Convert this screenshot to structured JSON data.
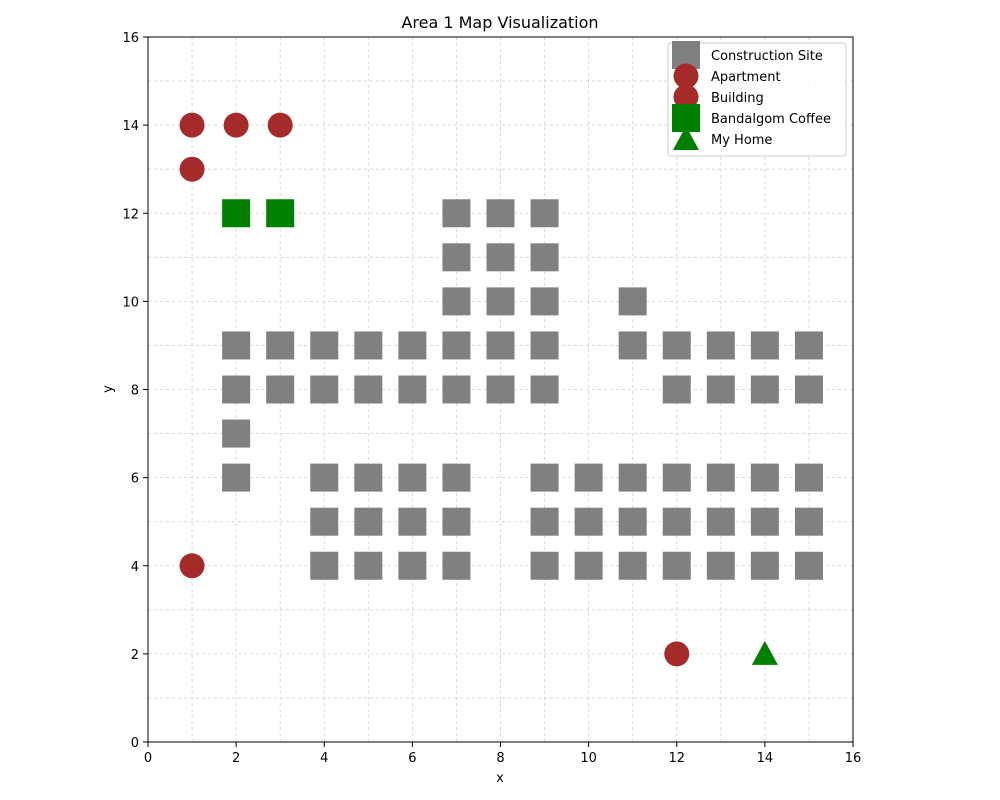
{
  "chart_data": {
    "type": "scatter",
    "title": "Area 1 Map Visualization",
    "xlabel": "x",
    "ylabel": "y",
    "xlim": [
      0,
      16
    ],
    "ylim": [
      0,
      16
    ],
    "xticks": [
      0,
      2,
      4,
      6,
      8,
      10,
      12,
      14,
      16
    ],
    "yticks": [
      0,
      2,
      4,
      6,
      8,
      10,
      12,
      14,
      16
    ],
    "grid": true,
    "legend_position": "top-right",
    "series": [
      {
        "name": "Construction Site",
        "marker": "square",
        "color": "#808080",
        "points": [
          [
            7,
            12
          ],
          [
            8,
            12
          ],
          [
            9,
            12
          ],
          [
            7,
            11
          ],
          [
            8,
            11
          ],
          [
            9,
            11
          ],
          [
            7,
            10
          ],
          [
            8,
            10
          ],
          [
            9,
            10
          ],
          [
            11,
            10
          ],
          [
            2,
            9
          ],
          [
            3,
            9
          ],
          [
            4,
            9
          ],
          [
            5,
            9
          ],
          [
            6,
            9
          ],
          [
            7,
            9
          ],
          [
            8,
            9
          ],
          [
            9,
            9
          ],
          [
            11,
            9
          ],
          [
            12,
            9
          ],
          [
            13,
            9
          ],
          [
            14,
            9
          ],
          [
            15,
            9
          ],
          [
            2,
            8
          ],
          [
            3,
            8
          ],
          [
            4,
            8
          ],
          [
            5,
            8
          ],
          [
            6,
            8
          ],
          [
            7,
            8
          ],
          [
            8,
            8
          ],
          [
            9,
            8
          ],
          [
            12,
            8
          ],
          [
            13,
            8
          ],
          [
            14,
            8
          ],
          [
            15,
            8
          ],
          [
            2,
            7
          ],
          [
            2,
            6
          ],
          [
            4,
            6
          ],
          [
            5,
            6
          ],
          [
            6,
            6
          ],
          [
            7,
            6
          ],
          [
            9,
            6
          ],
          [
            10,
            6
          ],
          [
            11,
            6
          ],
          [
            12,
            6
          ],
          [
            13,
            6
          ],
          [
            14,
            6
          ],
          [
            15,
            6
          ],
          [
            4,
            5
          ],
          [
            5,
            5
          ],
          [
            6,
            5
          ],
          [
            7,
            5
          ],
          [
            9,
            5
          ],
          [
            10,
            5
          ],
          [
            11,
            5
          ],
          [
            12,
            5
          ],
          [
            13,
            5
          ],
          [
            14,
            5
          ],
          [
            15,
            5
          ],
          [
            4,
            4
          ],
          [
            5,
            4
          ],
          [
            6,
            4
          ],
          [
            7,
            4
          ],
          [
            9,
            4
          ],
          [
            10,
            4
          ],
          [
            11,
            4
          ],
          [
            12,
            4
          ],
          [
            13,
            4
          ],
          [
            14,
            4
          ],
          [
            15,
            4
          ]
        ]
      },
      {
        "name": "Apartment",
        "marker": "circle",
        "color": "#a52a2a",
        "points": [
          [
            1,
            14
          ],
          [
            2,
            14
          ],
          [
            3,
            14
          ],
          [
            1,
            13
          ],
          [
            1,
            4
          ],
          [
            12,
            2
          ]
        ]
      },
      {
        "name": "Building",
        "marker": "circle",
        "color": "#a52a2a",
        "points": []
      },
      {
        "name": "Bandalgom Coffee",
        "marker": "square",
        "color": "#008000",
        "points": [
          [
            2,
            12
          ],
          [
            3,
            12
          ]
        ]
      },
      {
        "name": "My Home",
        "marker": "triangle",
        "color": "#008000",
        "points": [
          [
            14,
            2
          ]
        ]
      }
    ]
  }
}
